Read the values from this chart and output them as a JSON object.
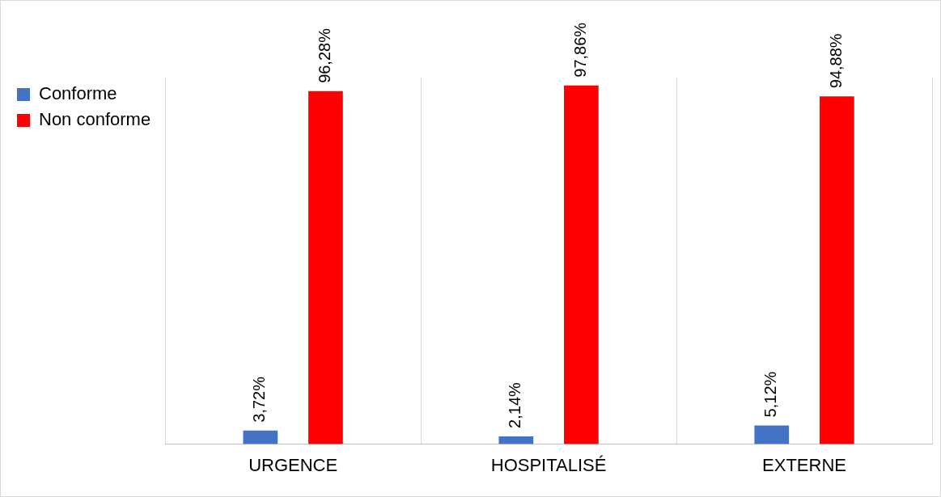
{
  "chart_data": {
    "type": "bar",
    "categories": [
      "URGENCE",
      "HOSPITALISÉ",
      "EXTERNE"
    ],
    "series": [
      {
        "name": "Conforme",
        "color": "#4472c4",
        "values": [
          3.72,
          2.14,
          5.12
        ],
        "value_labels": [
          "3,72%",
          "2,14%",
          "5,12%"
        ]
      },
      {
        "name": "Non conforme",
        "color": "#ff0000",
        "values": [
          96.28,
          97.86,
          94.88
        ],
        "value_labels": [
          "96,28%",
          "97,86%",
          "94,88%"
        ]
      }
    ],
    "grid": "x",
    "legend": "top left"
  }
}
